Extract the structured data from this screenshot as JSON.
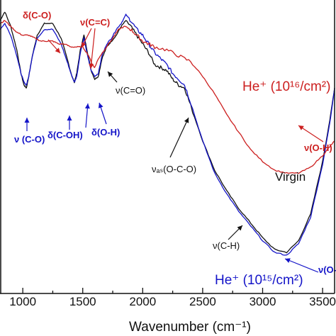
{
  "chart_data": {
    "type": "line",
    "xlabel": "Wavenumber (cm⁻¹)",
    "xlim": [
      810,
      3600
    ],
    "ylim": [
      0,
      1
    ],
    "x_ticks": [
      1000,
      1500,
      2000,
      2500,
      3000,
      3500
    ],
    "x_tick_labels": [
      "1000",
      "1500",
      "2000",
      "2500",
      "3000",
      "3500"
    ],
    "y_ticks_visible": false,
    "grid": false,
    "series": [
      {
        "name": "Virgin",
        "color": "#111111",
        "points": [
          [
            810,
            0.93
          ],
          [
            850,
            0.96
          ],
          [
            900,
            0.91
          ],
          [
            950,
            0.83
          ],
          [
            985,
            0.75
          ],
          [
            1010,
            0.71
          ],
          [
            1030,
            0.7
          ],
          [
            1050,
            0.74
          ],
          [
            1080,
            0.81
          ],
          [
            1120,
            0.88
          ],
          [
            1180,
            0.92
          ],
          [
            1250,
            0.92
          ],
          [
            1320,
            0.87
          ],
          [
            1370,
            0.8
          ],
          [
            1410,
            0.74
          ],
          [
            1430,
            0.72
          ],
          [
            1450,
            0.75
          ],
          [
            1480,
            0.83
          ],
          [
            1510,
            0.88
          ],
          [
            1540,
            0.82
          ],
          [
            1570,
            0.76
          ],
          [
            1600,
            0.73
          ],
          [
            1630,
            0.74
          ],
          [
            1660,
            0.8
          ],
          [
            1700,
            0.84
          ],
          [
            1740,
            0.86
          ],
          [
            1780,
            0.88
          ],
          [
            1820,
            0.91
          ],
          [
            1860,
            0.93
          ],
          [
            1900,
            0.91
          ],
          [
            1950,
            0.88
          ],
          [
            2000,
            0.85
          ],
          [
            2050,
            0.82
          ],
          [
            2100,
            0.78
          ],
          [
            2150,
            0.77
          ],
          [
            2200,
            0.76
          ],
          [
            2250,
            0.73
          ],
          [
            2300,
            0.71
          ],
          [
            2350,
            0.7
          ],
          [
            2400,
            0.64
          ],
          [
            2500,
            0.52
          ],
          [
            2600,
            0.42
          ],
          [
            2700,
            0.35
          ],
          [
            2800,
            0.29
          ],
          [
            2900,
            0.24
          ],
          [
            3000,
            0.19
          ],
          [
            3100,
            0.15
          ],
          [
            3200,
            0.14
          ],
          [
            3300,
            0.18
          ],
          [
            3400,
            0.27
          ],
          [
            3500,
            0.45
          ],
          [
            3560,
            0.59
          ],
          [
            3600,
            0.7
          ]
        ]
      },
      {
        "name": "He⁺ (10¹⁵/cm²)",
        "color": "#1414c8",
        "points": [
          [
            810,
            0.9
          ],
          [
            850,
            0.92
          ],
          [
            900,
            0.88
          ],
          [
            950,
            0.81
          ],
          [
            985,
            0.75
          ],
          [
            1010,
            0.72
          ],
          [
            1030,
            0.71
          ],
          [
            1050,
            0.74
          ],
          [
            1080,
            0.81
          ],
          [
            1120,
            0.87
          ],
          [
            1180,
            0.9
          ],
          [
            1250,
            0.9
          ],
          [
            1320,
            0.85
          ],
          [
            1370,
            0.79
          ],
          [
            1410,
            0.74
          ],
          [
            1430,
            0.72
          ],
          [
            1450,
            0.74
          ],
          [
            1480,
            0.82
          ],
          [
            1510,
            0.87
          ],
          [
            1540,
            0.81
          ],
          [
            1570,
            0.76
          ],
          [
            1600,
            0.74
          ],
          [
            1630,
            0.75
          ],
          [
            1660,
            0.81
          ],
          [
            1700,
            0.85
          ],
          [
            1740,
            0.87
          ],
          [
            1780,
            0.9
          ],
          [
            1820,
            0.92
          ],
          [
            1860,
            0.95
          ],
          [
            1900,
            0.93
          ],
          [
            1950,
            0.9
          ],
          [
            2000,
            0.88
          ],
          [
            2050,
            0.85
          ],
          [
            2100,
            0.82
          ],
          [
            2150,
            0.8
          ],
          [
            2200,
            0.78
          ],
          [
            2250,
            0.75
          ],
          [
            2300,
            0.73
          ],
          [
            2350,
            0.71
          ],
          [
            2400,
            0.65
          ],
          [
            2500,
            0.52
          ],
          [
            2600,
            0.41
          ],
          [
            2700,
            0.34
          ],
          [
            2800,
            0.28
          ],
          [
            2900,
            0.23
          ],
          [
            3000,
            0.18
          ],
          [
            3100,
            0.14
          ],
          [
            3200,
            0.13
          ],
          [
            3300,
            0.17
          ],
          [
            3400,
            0.26
          ],
          [
            3500,
            0.44
          ],
          [
            3560,
            0.58
          ],
          [
            3600,
            0.7
          ]
        ]
      },
      {
        "name": "He⁺ (10¹⁶/cm²)",
        "color": "#cc1f1f",
        "points": [
          [
            810,
            0.92
          ],
          [
            850,
            0.93
          ],
          [
            900,
            0.91
          ],
          [
            950,
            0.89
          ],
          [
            1000,
            0.88
          ],
          [
            1050,
            0.88
          ],
          [
            1100,
            0.87
          ],
          [
            1150,
            0.86
          ],
          [
            1200,
            0.86
          ],
          [
            1250,
            0.86
          ],
          [
            1300,
            0.85
          ],
          [
            1350,
            0.85
          ],
          [
            1400,
            0.84
          ],
          [
            1450,
            0.84
          ],
          [
            1500,
            0.84
          ],
          [
            1550,
            0.81
          ],
          [
            1580,
            0.78
          ],
          [
            1600,
            0.77
          ],
          [
            1630,
            0.8
          ],
          [
            1680,
            0.83
          ],
          [
            1750,
            0.87
          ],
          [
            1800,
            0.9
          ],
          [
            1850,
            0.91
          ],
          [
            1900,
            0.9
          ],
          [
            1950,
            0.88
          ],
          [
            2000,
            0.86
          ],
          [
            2050,
            0.85
          ],
          [
            2100,
            0.84
          ],
          [
            2200,
            0.83
          ],
          [
            2300,
            0.81
          ],
          [
            2400,
            0.79
          ],
          [
            2500,
            0.74
          ],
          [
            2600,
            0.68
          ],
          [
            2700,
            0.61
          ],
          [
            2800,
            0.55
          ],
          [
            2900,
            0.49
          ],
          [
            3000,
            0.45
          ],
          [
            3100,
            0.42
          ],
          [
            3200,
            0.41
          ],
          [
            3300,
            0.41
          ],
          [
            3400,
            0.43
          ],
          [
            3500,
            0.47
          ],
          [
            3560,
            0.5
          ],
          [
            3600,
            0.52
          ]
        ]
      }
    ],
    "annotations": [
      {
        "text": "δ(C-O)",
        "color": "#cc1f1f"
      },
      {
        "text": "ν(C=C)",
        "color": "#cc1f1f"
      },
      {
        "text": "ν (C-O)",
        "color": "#1414c8"
      },
      {
        "text": "δ(C-OH)",
        "color": "#1414c8"
      },
      {
        "text": "δ(O-H)",
        "color": "#1414c8"
      },
      {
        "text": "ν(C=O)",
        "color": "#111111"
      },
      {
        "text": "νₐₛ(O-C-O)",
        "color": "#111111"
      },
      {
        "text": "ν(C-H)",
        "color": "#111111"
      },
      {
        "text": "ν(O-H)",
        "color": "#cc1f1f"
      },
      {
        "text": "ν(O-",
        "color": "#1414c8"
      },
      {
        "text": "Virgin",
        "color": "#111111"
      },
      {
        "text": "He⁺ (10¹⁶/cm²)",
        "color": "#cc1f1f"
      },
      {
        "text": "He⁺ (10¹⁵/cm²)",
        "color": "#1414c8"
      }
    ]
  }
}
